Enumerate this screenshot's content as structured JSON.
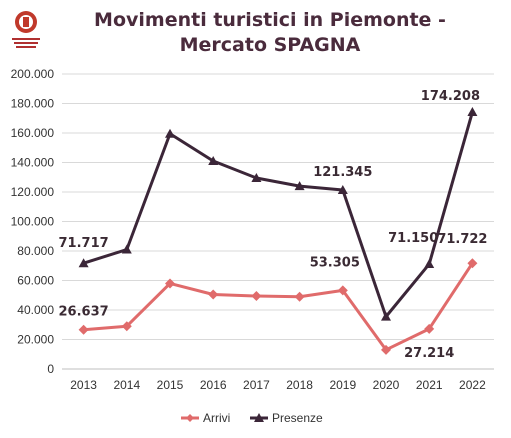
{
  "chart_data": {
    "type": "line",
    "title_line1": "Movimenti turistici in Piemonte -",
    "title_line2": "Mercato SPAGNA",
    "categories": [
      "2013",
      "2014",
      "2015",
      "2016",
      "2017",
      "2018",
      "2019",
      "2020",
      "2021",
      "2022"
    ],
    "ylim": [
      0,
      200000
    ],
    "yticks": [
      "0",
      "20.000",
      "40.000",
      "60.000",
      "80.000",
      "100.000",
      "120.000",
      "140.000",
      "160.000",
      "180.000",
      "200.000"
    ],
    "grid": true,
    "legend_position": "bottom",
    "series": [
      {
        "name": "Arrivi",
        "color": "#e06b6b",
        "marker": "diamond",
        "values": [
          26637,
          29000,
          58000,
          50500,
          49500,
          49000,
          53305,
          13000,
          27214,
          71722
        ]
      },
      {
        "name": "Presenze",
        "color": "#3b2638",
        "marker": "triangle",
        "values": [
          71717,
          81000,
          159500,
          141000,
          129500,
          124000,
          121345,
          35500,
          71150,
          174208
        ]
      }
    ],
    "annotations": [
      {
        "series": 1,
        "index": 0,
        "text": "71.717"
      },
      {
        "series": 1,
        "index": 6,
        "text": "121.345"
      },
      {
        "series": 1,
        "index": 8,
        "text": "71.150"
      },
      {
        "series": 1,
        "index": 9,
        "text": "174.208"
      },
      {
        "series": 0,
        "index": 0,
        "text": "26.637"
      },
      {
        "series": 0,
        "index": 6,
        "text": "53.305"
      },
      {
        "series": 0,
        "index": 8,
        "text": "27.214"
      },
      {
        "series": 0,
        "index": 9,
        "text": "71.722"
      }
    ]
  },
  "colors": {
    "title": "#4a2b3c",
    "grid": "#d9d9d9",
    "logo": "#c0392b"
  }
}
